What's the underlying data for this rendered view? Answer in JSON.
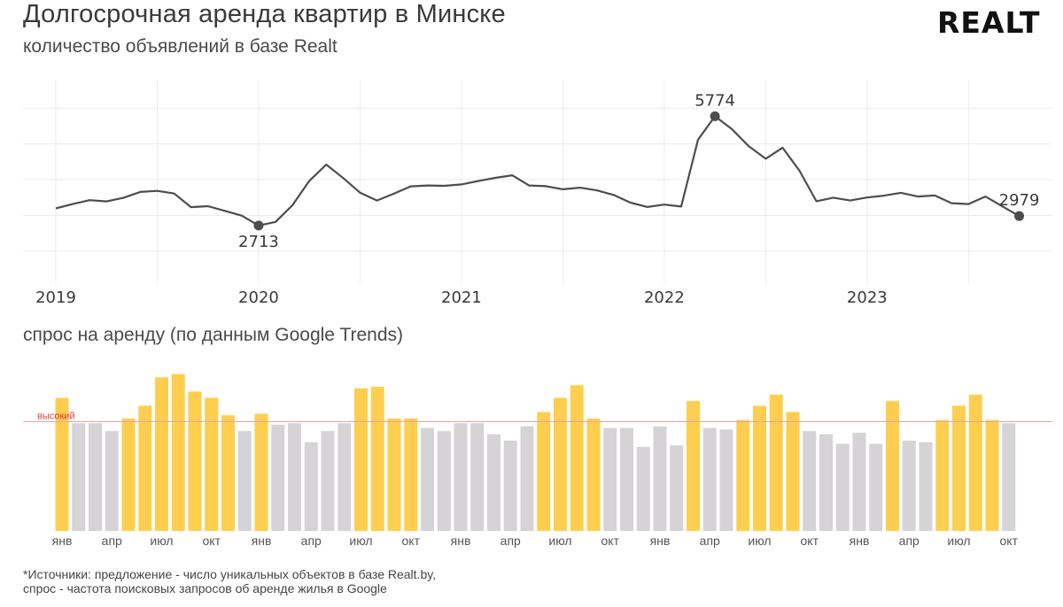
{
  "header": {
    "title": "Долгосрочная аренда квартир в Минске",
    "subtitle": "количество объявлений в базе Realt",
    "logo": "REALT"
  },
  "colors": {
    "line": "#4d4d4d",
    "high": "#ffce4f",
    "low": "#d5d3d5",
    "threshold": "#e8a8a0",
    "threshold_label": "#e53935"
  },
  "chart_data": [
    {
      "type": "line",
      "title": "количество объявлений в базе Realt",
      "x_tick_labels": [
        "2019",
        "2020",
        "2021",
        "2022",
        "2023"
      ],
      "x": [
        "2019-01",
        "2019-02",
        "2019-03",
        "2019-04",
        "2019-05",
        "2019-06",
        "2019-07",
        "2019-08",
        "2019-09",
        "2019-10",
        "2019-11",
        "2019-12",
        "2020-01",
        "2020-02",
        "2020-03",
        "2020-04",
        "2020-05",
        "2020-06",
        "2020-07",
        "2020-08",
        "2020-09",
        "2020-10",
        "2020-11",
        "2020-12",
        "2021-01",
        "2021-02",
        "2021-03",
        "2021-04",
        "2021-05",
        "2021-06",
        "2021-07",
        "2021-08",
        "2021-09",
        "2021-10",
        "2021-11",
        "2021-12",
        "2022-01",
        "2022-02",
        "2022-03",
        "2022-04",
        "2022-05",
        "2022-06",
        "2022-07",
        "2022-08",
        "2022-09",
        "2022-10",
        "2022-11",
        "2022-12",
        "2023-01",
        "2023-02",
        "2023-03",
        "2023-04",
        "2023-05",
        "2023-06",
        "2023-07",
        "2023-08",
        "2023-09",
        "2023-10"
      ],
      "values": [
        3195,
        3315,
        3425,
        3390,
        3490,
        3655,
        3685,
        3610,
        3230,
        3255,
        3125,
        2990,
        2713,
        2815,
        3280,
        3965,
        4420,
        4045,
        3635,
        3415,
        3605,
        3810,
        3835,
        3825,
        3865,
        3960,
        4050,
        4120,
        3835,
        3815,
        3730,
        3775,
        3700,
        3570,
        3355,
        3235,
        3300,
        3245,
        5120,
        5774,
        5415,
        4935,
        4585,
        4895,
        4250,
        3395,
        3495,
        3415,
        3500,
        3550,
        3630,
        3525,
        3555,
        3340,
        3315,
        3525,
        3250,
        2979
      ],
      "annotations": [
        {
          "x": "2020-01",
          "label": "2713",
          "position": "below"
        },
        {
          "x": "2022-04",
          "label": "5774",
          "position": "above"
        },
        {
          "x": "2023-10",
          "label": "2979",
          "position": "above"
        }
      ],
      "ylim": [
        1100,
        6800
      ],
      "grid": true
    },
    {
      "type": "bar",
      "title": "спрос на аренду (по данным Google Trends)",
      "x_tick_labels": [
        "янв",
        "апр",
        "июл",
        "окт",
        "янв",
        "апр",
        "июл",
        "окт",
        "янв",
        "апр",
        "июл",
        "окт",
        "янв",
        "апр",
        "июл",
        "окт",
        "янв",
        "апр",
        "июл",
        "окт"
      ],
      "values": [
        84,
        68,
        68,
        63,
        71,
        79,
        97,
        99,
        88,
        84,
        73,
        63,
        74,
        67,
        68,
        56,
        63,
        68,
        90,
        91,
        71,
        71,
        65,
        63,
        68,
        68,
        61,
        57,
        66,
        75,
        84,
        92,
        71,
        65,
        65,
        53,
        66,
        54,
        82,
        65,
        64,
        70,
        79,
        86,
        75,
        63,
        61,
        55,
        62,
        55,
        82,
        57,
        56,
        70,
        79,
        86,
        70,
        68
      ],
      "threshold": {
        "value": 69,
        "label": "высокий"
      },
      "ylim": [
        0,
        105
      ],
      "series_colors": {
        "above_threshold": "#ffce4f",
        "below_threshold": "#d5d3d5"
      }
    }
  ],
  "section2": {
    "title": "спрос на аренду (по данным Google Trends)"
  },
  "footnote": {
    "line1": "*Источники: предложение - число уникальных объектов в базе Realt.by,",
    "line2": "спрос - частота поисковых запросов об аренде жилья в Google"
  }
}
